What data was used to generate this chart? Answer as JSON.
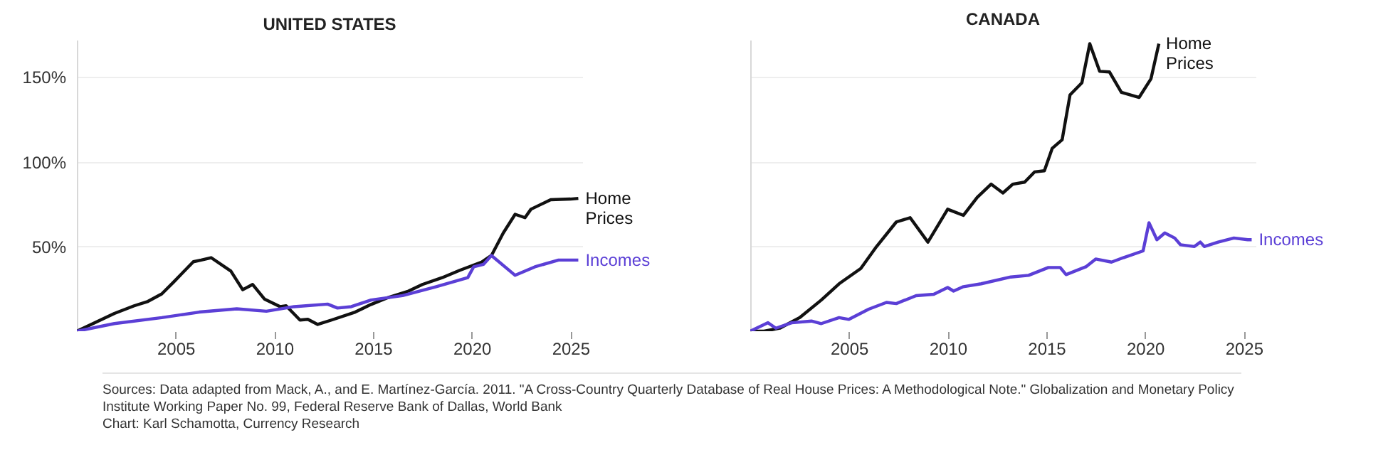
{
  "chart_data": [
    {
      "type": "line",
      "title": "UNITED STATES",
      "xlim": [
        2000,
        2025.6
      ],
      "xticks": [
        2005,
        2010,
        2015,
        2020,
        2025
      ],
      "ylim": [
        0,
        172
      ],
      "yticks": [
        {
          "value": 50,
          "label": "50%"
        },
        {
          "value": 100,
          "label": "100%"
        },
        {
          "value": 150,
          "label": "150%"
        }
      ],
      "grid": "y",
      "series": [
        {
          "name": "Home Prices",
          "color": "#111111",
          "x": [
            2000,
            2001.9,
            2002.9,
            2003.6,
            2004.3,
            2004.9,
            2005.9,
            2006.3,
            2006.8,
            2007.8,
            2008.4,
            2008.9,
            2009.5,
            2010.3,
            2010.6,
            2011.3,
            2011.7,
            2012.2,
            2012.9,
            2014.1,
            2014.9,
            2015.8,
            2016.8,
            2017.5,
            2018.5,
            2019.4,
            2020.5,
            2021.0,
            2021.6,
            2022.2,
            2022.7,
            2023.0,
            2024.0,
            2025.0,
            2025.4
          ],
          "values": [
            0,
            10.5,
            15,
            17.6,
            22,
            29,
            41,
            42,
            43.4,
            35.5,
            24.5,
            27.6,
            19,
            14.5,
            15,
            6.6,
            7,
            4,
            6.6,
            11.3,
            15.8,
            20,
            23.7,
            27.6,
            31.6,
            36,
            40.8,
            44.7,
            58,
            69,
            67,
            72,
            77.6,
            78,
            78.4
          ]
        },
        {
          "name": "Incomes",
          "color": "#5b3fd6",
          "x": [
            2000,
            2001.9,
            2004.3,
            2006.2,
            2008.1,
            2009.6,
            2011.0,
            2012.7,
            2013.2,
            2013.9,
            2014.9,
            2016.5,
            2018.2,
            2019.8,
            2020.1,
            2020.6,
            2021.0,
            2022.2,
            2023.2,
            2024.4,
            2025.4
          ],
          "values": [
            0,
            4.5,
            8,
            11.3,
            13.2,
            11.8,
            14.5,
            16,
            13.7,
            14.5,
            18.4,
            21,
            26.3,
            31.6,
            38,
            39.5,
            44.7,
            33,
            38,
            42,
            42
          ]
        }
      ],
      "annotations": [
        "Sources: Data adapted from Mack, A., and E. Martínez-García. 2011. \"A Cross-Country Quarterly Database of Real House Prices: A Methodological Note.\" Globalization and Monetary Policy Institute Working Paper No. 99, Federal Reserve Bank of Dallas, World Bank",
        "Chart: Karl Schamotta, Currency Research"
      ]
    },
    {
      "type": "line",
      "title": "CANADA",
      "xlim": [
        2000,
        2025.6
      ],
      "xticks": [
        2005,
        2010,
        2015,
        2020,
        2025
      ],
      "ylim": [
        0,
        172
      ],
      "yticks": [
        50,
        100,
        150
      ],
      "grid": "y",
      "tick_labels": "x",
      "series": [
        {
          "name": "Home Prices",
          "color": "#111111",
          "x": [
            2000,
            2000.7,
            2001.5,
            2002.5,
            2003.6,
            2004.5,
            2005.6,
            2006.4,
            2007.4,
            2008.1,
            2009.0,
            2010.0,
            2010.8,
            2011.5,
            2012.2,
            2012.8,
            2013.3,
            2013.9,
            2014.4,
            2014.9,
            2015.3,
            2015.8,
            2016.2,
            2016.8,
            2017.2,
            2017.7,
            2018.2,
            2018.8,
            2019.7,
            2020.3,
            2020.7
          ],
          "values": [
            0,
            0,
            1.8,
            8,
            18.4,
            28,
            37,
            50,
            64.5,
            67,
            52.6,
            72,
            68.4,
            79,
            86.8,
            81.6,
            86.8,
            88,
            94,
            94.7,
            108,
            113,
            139.5,
            146.6,
            169.7,
            153.4,
            153,
            141,
            138,
            149,
            169.7
          ]
        },
        {
          "name": "Incomes",
          "color": "#5b3fd6",
          "x": [
            2000,
            2000.9,
            2001.3,
            2002.1,
            2003.1,
            2003.6,
            2004.5,
            2005.0,
            2006.0,
            2006.9,
            2007.4,
            2008.4,
            2009.3,
            2010.0,
            2010.3,
            2010.8,
            2011.7,
            2013.2,
            2014.1,
            2015.1,
            2015.7,
            2016.0,
            2017.0,
            2017.5,
            2018.3,
            2018.9,
            2019.9,
            2020.2,
            2020.6,
            2021.0,
            2021.5,
            2021.8,
            2022.5,
            2022.8,
            2023.0,
            2023.7,
            2024.5,
            2025.2,
            2025.4
          ],
          "values": [
            0,
            5,
            1.8,
            5,
            6,
            4.5,
            8,
            7,
            13,
            17,
            16.3,
            21,
            21.8,
            25.8,
            23.7,
            26.3,
            28,
            32,
            33,
            37.6,
            37.6,
            33.4,
            38,
            42.6,
            40.8,
            43.4,
            47.4,
            64,
            54,
            58,
            55,
            51,
            50,
            52.6,
            50,
            52.6,
            55,
            54,
            54
          ]
        }
      ]
    }
  ]
}
